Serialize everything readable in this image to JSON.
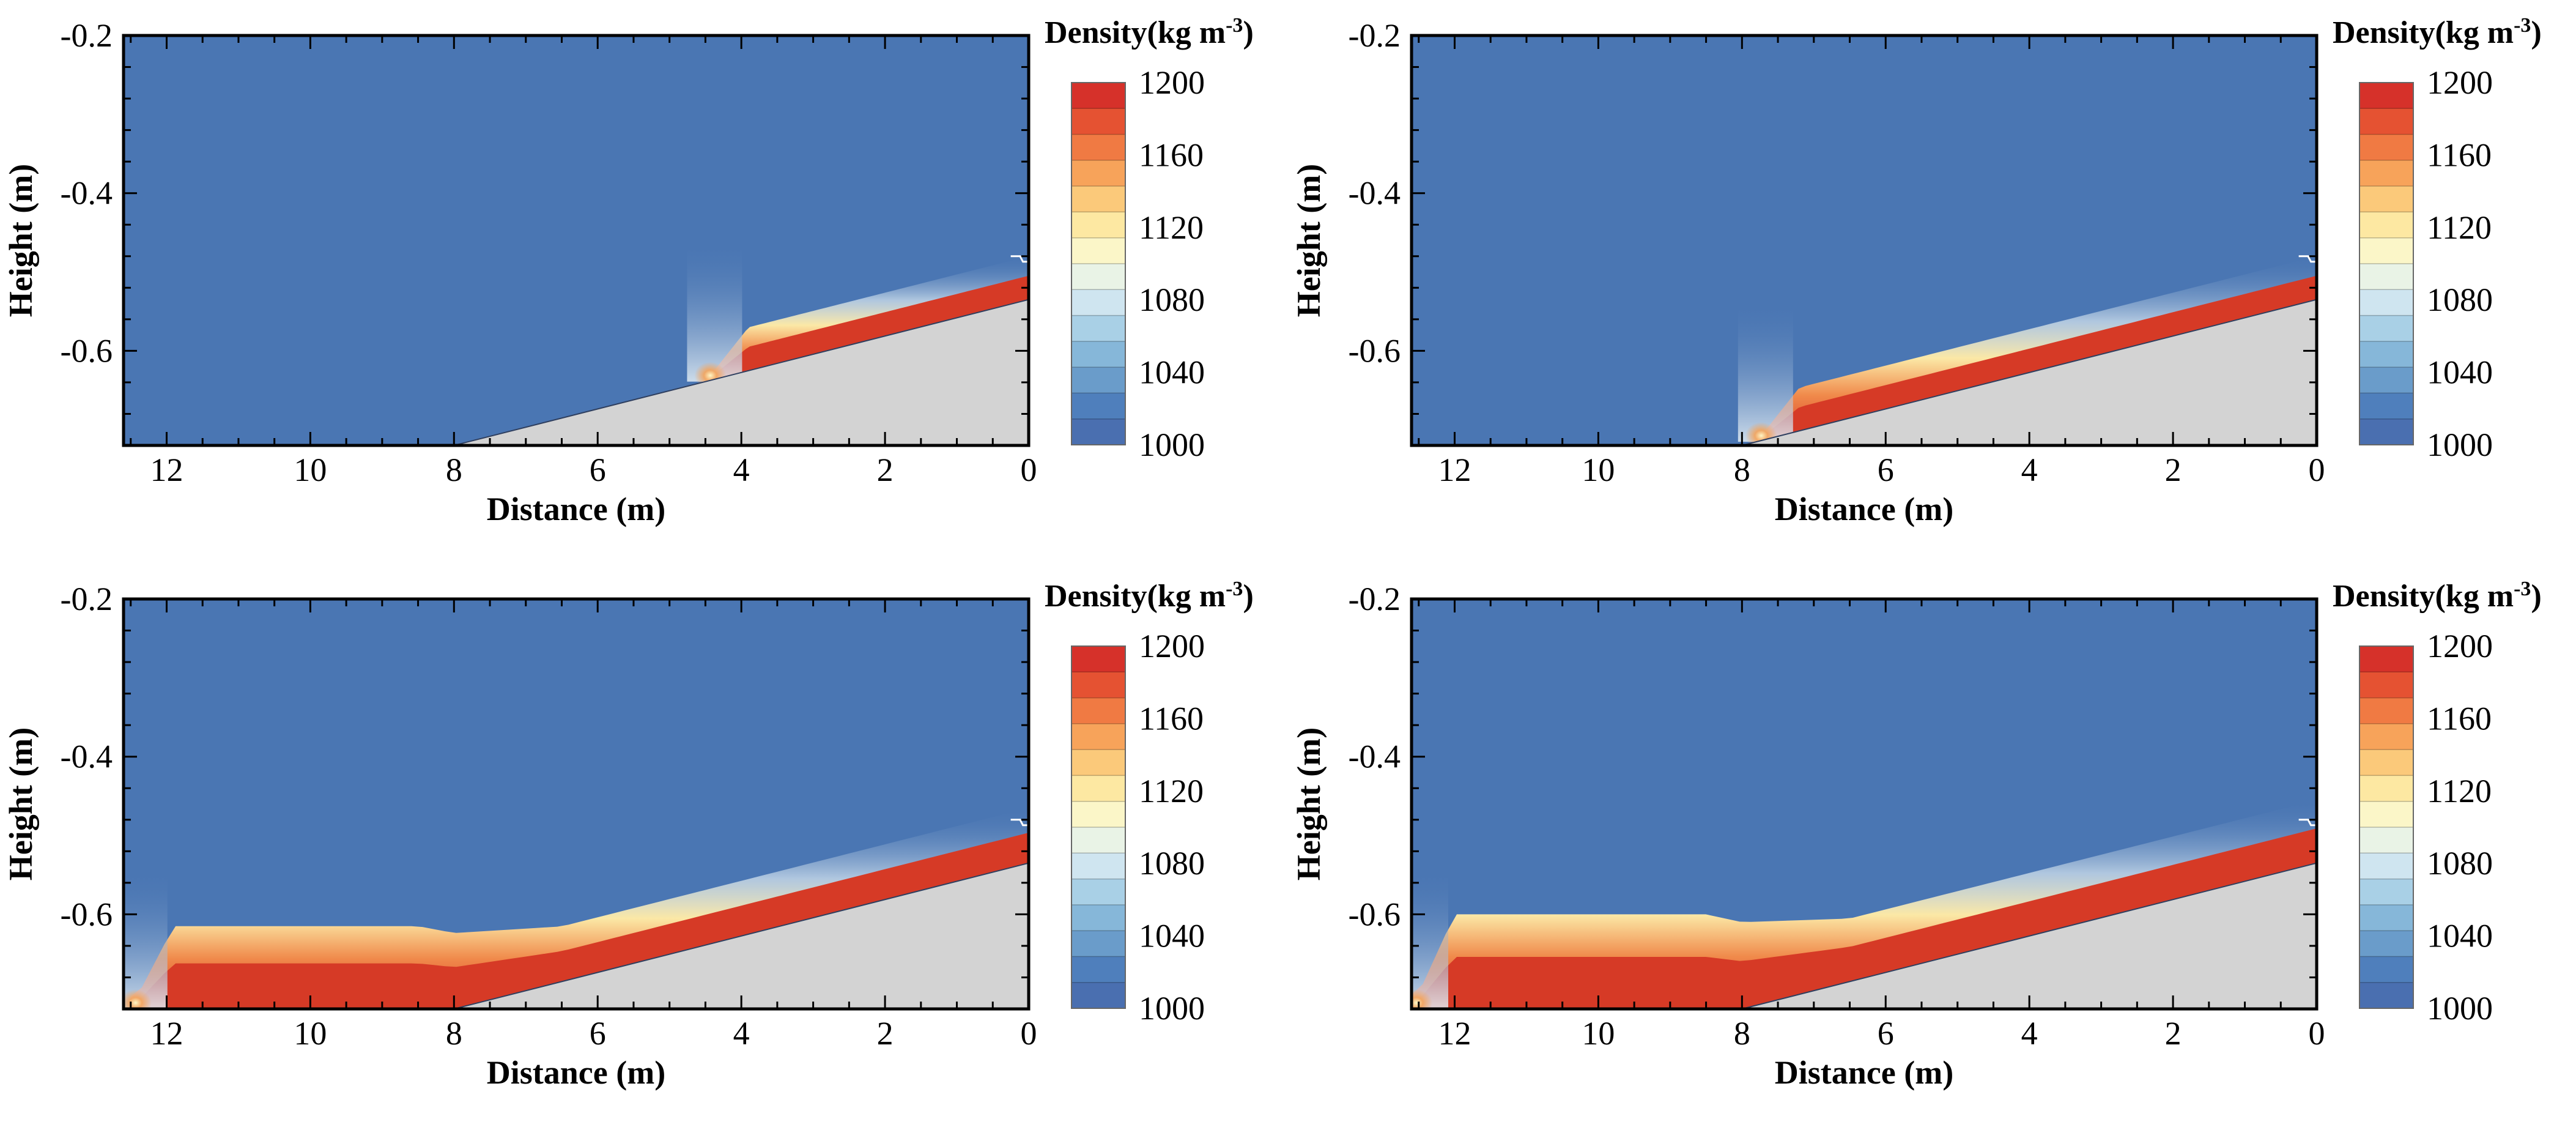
{
  "chart_data": [
    {
      "type": "contour",
      "panel": "top-left",
      "xlabel": "Distance (m)",
      "ylabel": "Height (m)",
      "xlim": [
        12.6,
        0
      ],
      "ylim": [
        -0.72,
        -0.2
      ],
      "xticks": [
        "12",
        "10",
        "8",
        "6",
        "4",
        "2",
        "0"
      ],
      "yticks": [
        "-0.2",
        "-0.4",
        "-0.6"
      ],
      "colorbar": {
        "title": "Density(kg m",
        "title_sup": "-3",
        "title_end": ")",
        "labels": [
          "1200",
          "1160",
          "1120",
          "1080",
          "1040",
          "1000"
        ],
        "min": 1000,
        "max": 1200
      },
      "slope": {
        "toe_x": 8.0,
        "toe_y": -0.72,
        "top_x": 0.0,
        "top_y": -0.535
      },
      "current": {
        "front_x": 4.5,
        "max_thickness": 0.055,
        "density_max": 1200
      },
      "colors": {
        "water": "#4a76b3",
        "dense": "#d63a26",
        "bed": "#d3d3d3",
        "frame": "#000000"
      }
    },
    {
      "type": "contour",
      "panel": "top-right",
      "xlabel": "Distance (m)",
      "ylabel": "Height (m)",
      "xlim": [
        12.6,
        0
      ],
      "ylim": [
        -0.72,
        -0.2
      ],
      "xticks": [
        "12",
        "10",
        "8",
        "6",
        "4",
        "2",
        "0"
      ],
      "yticks": [
        "-0.2",
        "-0.4",
        "-0.6"
      ],
      "colorbar": {
        "title": "Density(kg m",
        "title_sup": "-3",
        "title_end": ")",
        "labels": [
          "1200",
          "1160",
          "1120",
          "1080",
          "1040",
          "1000"
        ],
        "min": 1000,
        "max": 1200
      },
      "slope": {
        "toe_x": 8.0,
        "toe_y": -0.72,
        "top_x": 0.0,
        "top_y": -0.535
      },
      "current": {
        "front_x": 7.8,
        "max_thickness": 0.055,
        "density_max": 1200
      },
      "colors": {
        "water": "#4a76b3",
        "dense": "#d63a26",
        "bed": "#d3d3d3",
        "frame": "#000000"
      }
    },
    {
      "type": "contour",
      "panel": "bottom-left",
      "xlabel": "Distance (m)",
      "ylabel": "Height (m)",
      "xlim": [
        12.6,
        0
      ],
      "ylim": [
        -0.72,
        -0.2
      ],
      "xticks": [
        "12",
        "10",
        "8",
        "6",
        "4",
        "2",
        "0"
      ],
      "yticks": [
        "-0.2",
        "-0.4",
        "-0.6"
      ],
      "colorbar": {
        "title": "Density(kg m",
        "title_sup": "-3",
        "title_end": ")",
        "labels": [
          "1200",
          "1160",
          "1120",
          "1080",
          "1040",
          "1000"
        ],
        "min": 1000,
        "max": 1200
      },
      "slope": {
        "toe_x": 8.0,
        "toe_y": -0.72,
        "top_x": 0.0,
        "top_y": -0.535
      },
      "current": {
        "front_x": 12.5,
        "max_thickness": 0.07,
        "density_max": 1200
      },
      "colors": {
        "water": "#4a76b3",
        "dense": "#d63a26",
        "bed": "#d3d3d3",
        "frame": "#000000"
      }
    },
    {
      "type": "contour",
      "panel": "bottom-right",
      "xlabel": "Distance (m)",
      "ylabel": "Height (m)",
      "xlim": [
        12.6,
        0
      ],
      "ylim": [
        -0.72,
        -0.2
      ],
      "xticks": [
        "12",
        "10",
        "8",
        "6",
        "4",
        "2",
        "0"
      ],
      "yticks": [
        "-0.2",
        "-0.4",
        "-0.6"
      ],
      "colorbar": {
        "title": "Density(kg m",
        "title_sup": "-3",
        "title_end": ")",
        "labels": [
          "1200",
          "1160",
          "1120",
          "1080",
          "1040",
          "1000"
        ],
        "min": 1000,
        "max": 1200
      },
      "slope": {
        "toe_x": 8.0,
        "toe_y": -0.72,
        "top_x": 0.0,
        "top_y": -0.535
      },
      "current": {
        "front_x": 12.6,
        "max_thickness": 0.08,
        "density_max": 1200
      },
      "colors": {
        "water": "#4a76b3",
        "dense": "#d63a26",
        "bed": "#d3d3d3",
        "frame": "#000000"
      }
    }
  ]
}
